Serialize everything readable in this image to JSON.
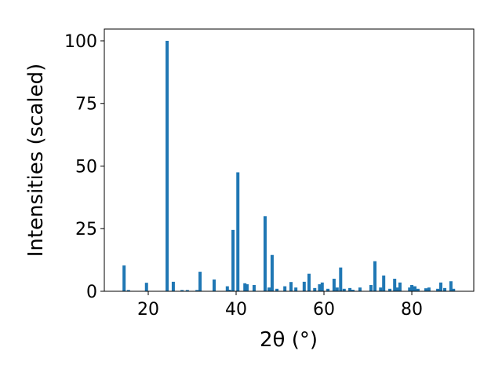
{
  "chart_data": {
    "type": "bar",
    "x_label": "2θ (°)",
    "y_label": "Intensities (scaled)",
    "color": "#1f77b4",
    "x": [
      14.5,
      15.5,
      19.6,
      24.3,
      25.7,
      27.7,
      28.9,
      31.1,
      31.8,
      35.0,
      38.0,
      38.5,
      39.3,
      40.4,
      42.0,
      42.5,
      44.1,
      46.6,
      47.5,
      48.2,
      49.3,
      51.1,
      52.5,
      53.6,
      55.5,
      56.6,
      57.9,
      59.0,
      59.6,
      60.9,
      62.3,
      63.0,
      63.8,
      64.6,
      65.9,
      66.6,
      68.2,
      70.7,
      71.6,
      72.9,
      73.6,
      75.0,
      76.1,
      76.6,
      77.3,
      79.5,
      80.0,
      80.7,
      81.4,
      83.2,
      83.9,
      85.9,
      86.6,
      87.5,
      88.9,
      89.5
    ],
    "values": [
      10.3,
      0.5,
      3.4,
      100,
      3.8,
      0.5,
      0.5,
      0.5,
      7.8,
      4.7,
      2,
      0.6,
      24.5,
      47.5,
      3.2,
      2.8,
      2.5,
      30,
      1.5,
      14.5,
      1,
      2,
      3.7,
      1.5,
      3.8,
      7,
      1.3,
      2.8,
      3.5,
      1,
      5,
      1.5,
      9.5,
      1,
      1.3,
      0.6,
      1.5,
      2.5,
      12,
      1.5,
      6.3,
      1,
      5,
      1.5,
      3.5,
      1.5,
      2.5,
      2,
      1,
      1.2,
      1.5,
      1,
      3.5,
      1.3,
      4,
      1
    ],
    "xlim": [
      10,
      94.1
    ],
    "ylim": [
      0,
      104.7
    ],
    "xticks": [
      20,
      40,
      60,
      80
    ],
    "yticks": [
      0,
      25,
      50,
      75,
      100
    ]
  }
}
